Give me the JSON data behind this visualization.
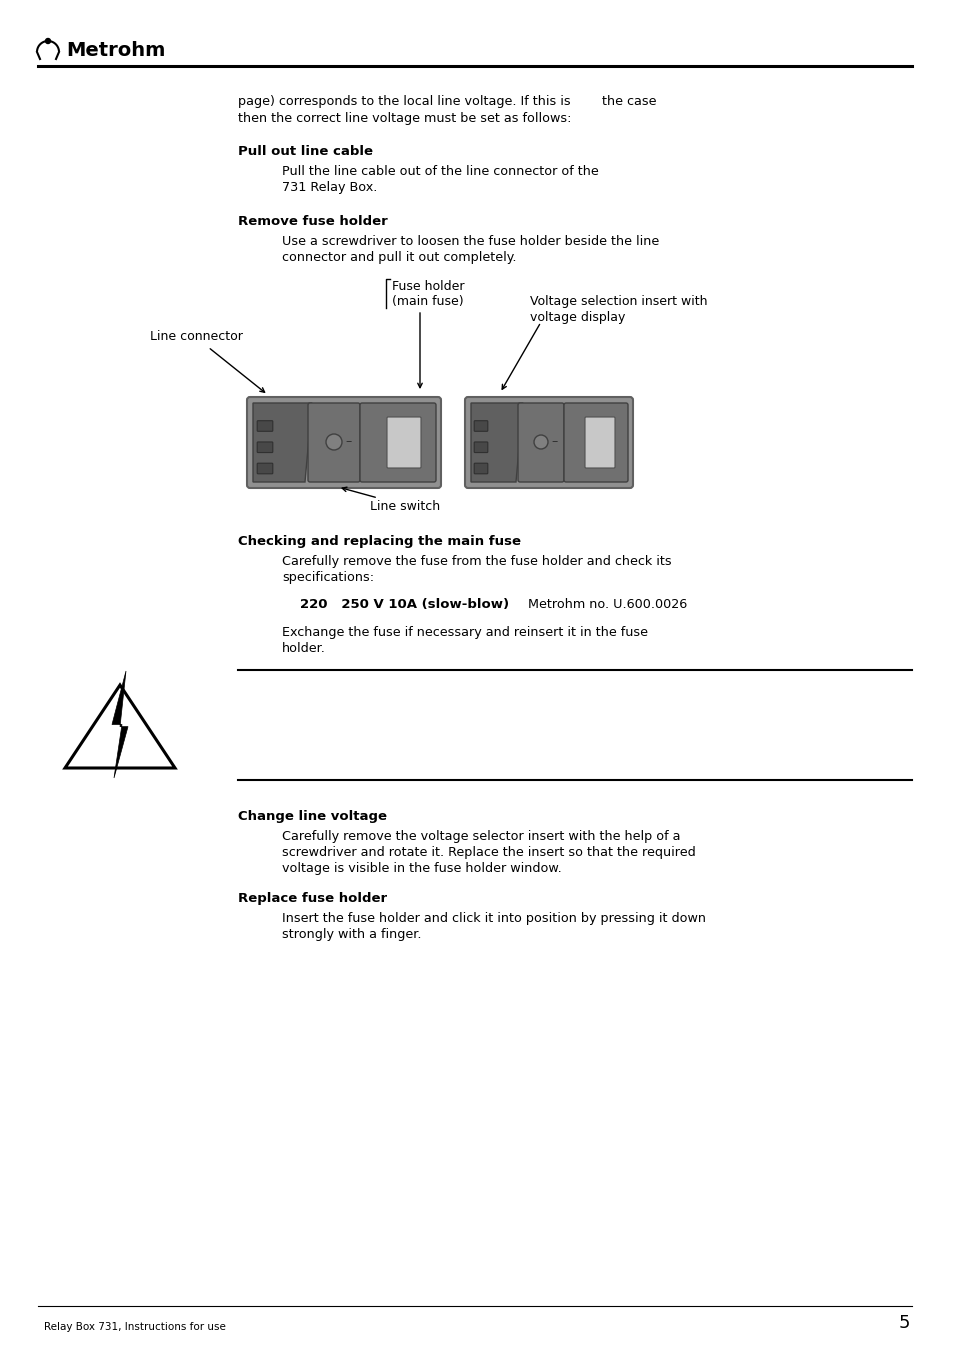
{
  "bg_color": "#ffffff",
  "logo_text": "Metrohm",
  "page_number": "5",
  "footer_text": "Relay Box 731, Instructions for use",
  "intro_line1": "page) corresponds to the local line voltage. If this is",
  "intro_gap_text": "the case",
  "intro_line2": "then the correct line voltage must be set as follows:",
  "s1_title": "Pull out line cable",
  "s1_b1": "Pull the line cable out of the line connector of the",
  "s1_b2": "731 Relay Box.",
  "s2_title": "Remove fuse holder",
  "s2_b1": "Use a screwdriver to loosen the fuse holder beside the line",
  "s2_b2": "connector and pull it out completely.",
  "lbl_fuse1": "Fuse holder",
  "lbl_fuse2": "(main fuse)",
  "lbl_lineconn": "Line connector",
  "lbl_voltage1": "Voltage selection insert with",
  "lbl_voltage2": "voltage display",
  "lbl_lineswitch": "Line switch",
  "s3_title": "Checking and replacing the main fuse",
  "s3_b1": "Carefully remove the fuse from the fuse holder and check its",
  "s3_b2": "specifications:",
  "fuse_bold": "220   250 V 10A (slow-blow)",
  "fuse_normal": " Metrohm no. U.600.0026",
  "exch1": "Exchange the fuse if necessary and reinsert it in the fuse",
  "exch2": "holder.",
  "s4_title": "Change line voltage",
  "s4_b1": "Carefully remove the voltage selector insert with the help of a",
  "s4_b2": "screwdriver and rotate it. Replace the insert so that the required",
  "s4_b3": "voltage is visible in the fuse holder window.",
  "s5_title": "Replace fuse holder",
  "s5_b1": "Insert the fuse holder and click it into position by pressing it down",
  "s5_b2": "strongly with a finger."
}
